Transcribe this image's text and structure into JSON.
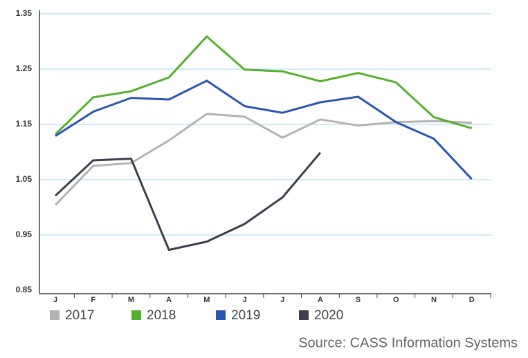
{
  "chart_data": {
    "type": "line",
    "categories": [
      "J",
      "F",
      "M",
      "A",
      "M",
      "J",
      "J",
      "A",
      "S",
      "O",
      "N",
      "D"
    ],
    "series": [
      {
        "name": "2017",
        "color": "#b3b3b3",
        "values": [
          1.004,
          1.075,
          1.08,
          1.121,
          1.169,
          1.164,
          1.126,
          1.159,
          1.148,
          1.154,
          1.156,
          1.153
        ]
      },
      {
        "name": "2018",
        "color": "#55b02b",
        "values": [
          1.132,
          1.199,
          1.21,
          1.235,
          1.309,
          1.249,
          1.246,
          1.228,
          1.243,
          1.226,
          1.163,
          1.143
        ]
      },
      {
        "name": "2019",
        "color": "#2a55b5",
        "values": [
          1.129,
          1.173,
          1.198,
          1.195,
          1.229,
          1.183,
          1.171,
          1.19,
          1.2,
          1.154,
          1.124,
          1.051
        ]
      },
      {
        "name": "2020",
        "color": "#3b3f4e",
        "values": [
          1.021,
          1.085,
          1.088,
          0.923,
          0.938,
          0.97,
          1.018,
          1.099,
          null,
          null,
          null,
          null
        ]
      }
    ],
    "ylim": [
      0.85,
      1.35
    ],
    "yticks": [
      0.85,
      0.95,
      1.05,
      1.15,
      1.25,
      1.35
    ],
    "grid": true,
    "legend": "bottom-left",
    "source": "Source: CASS Information Systems"
  }
}
